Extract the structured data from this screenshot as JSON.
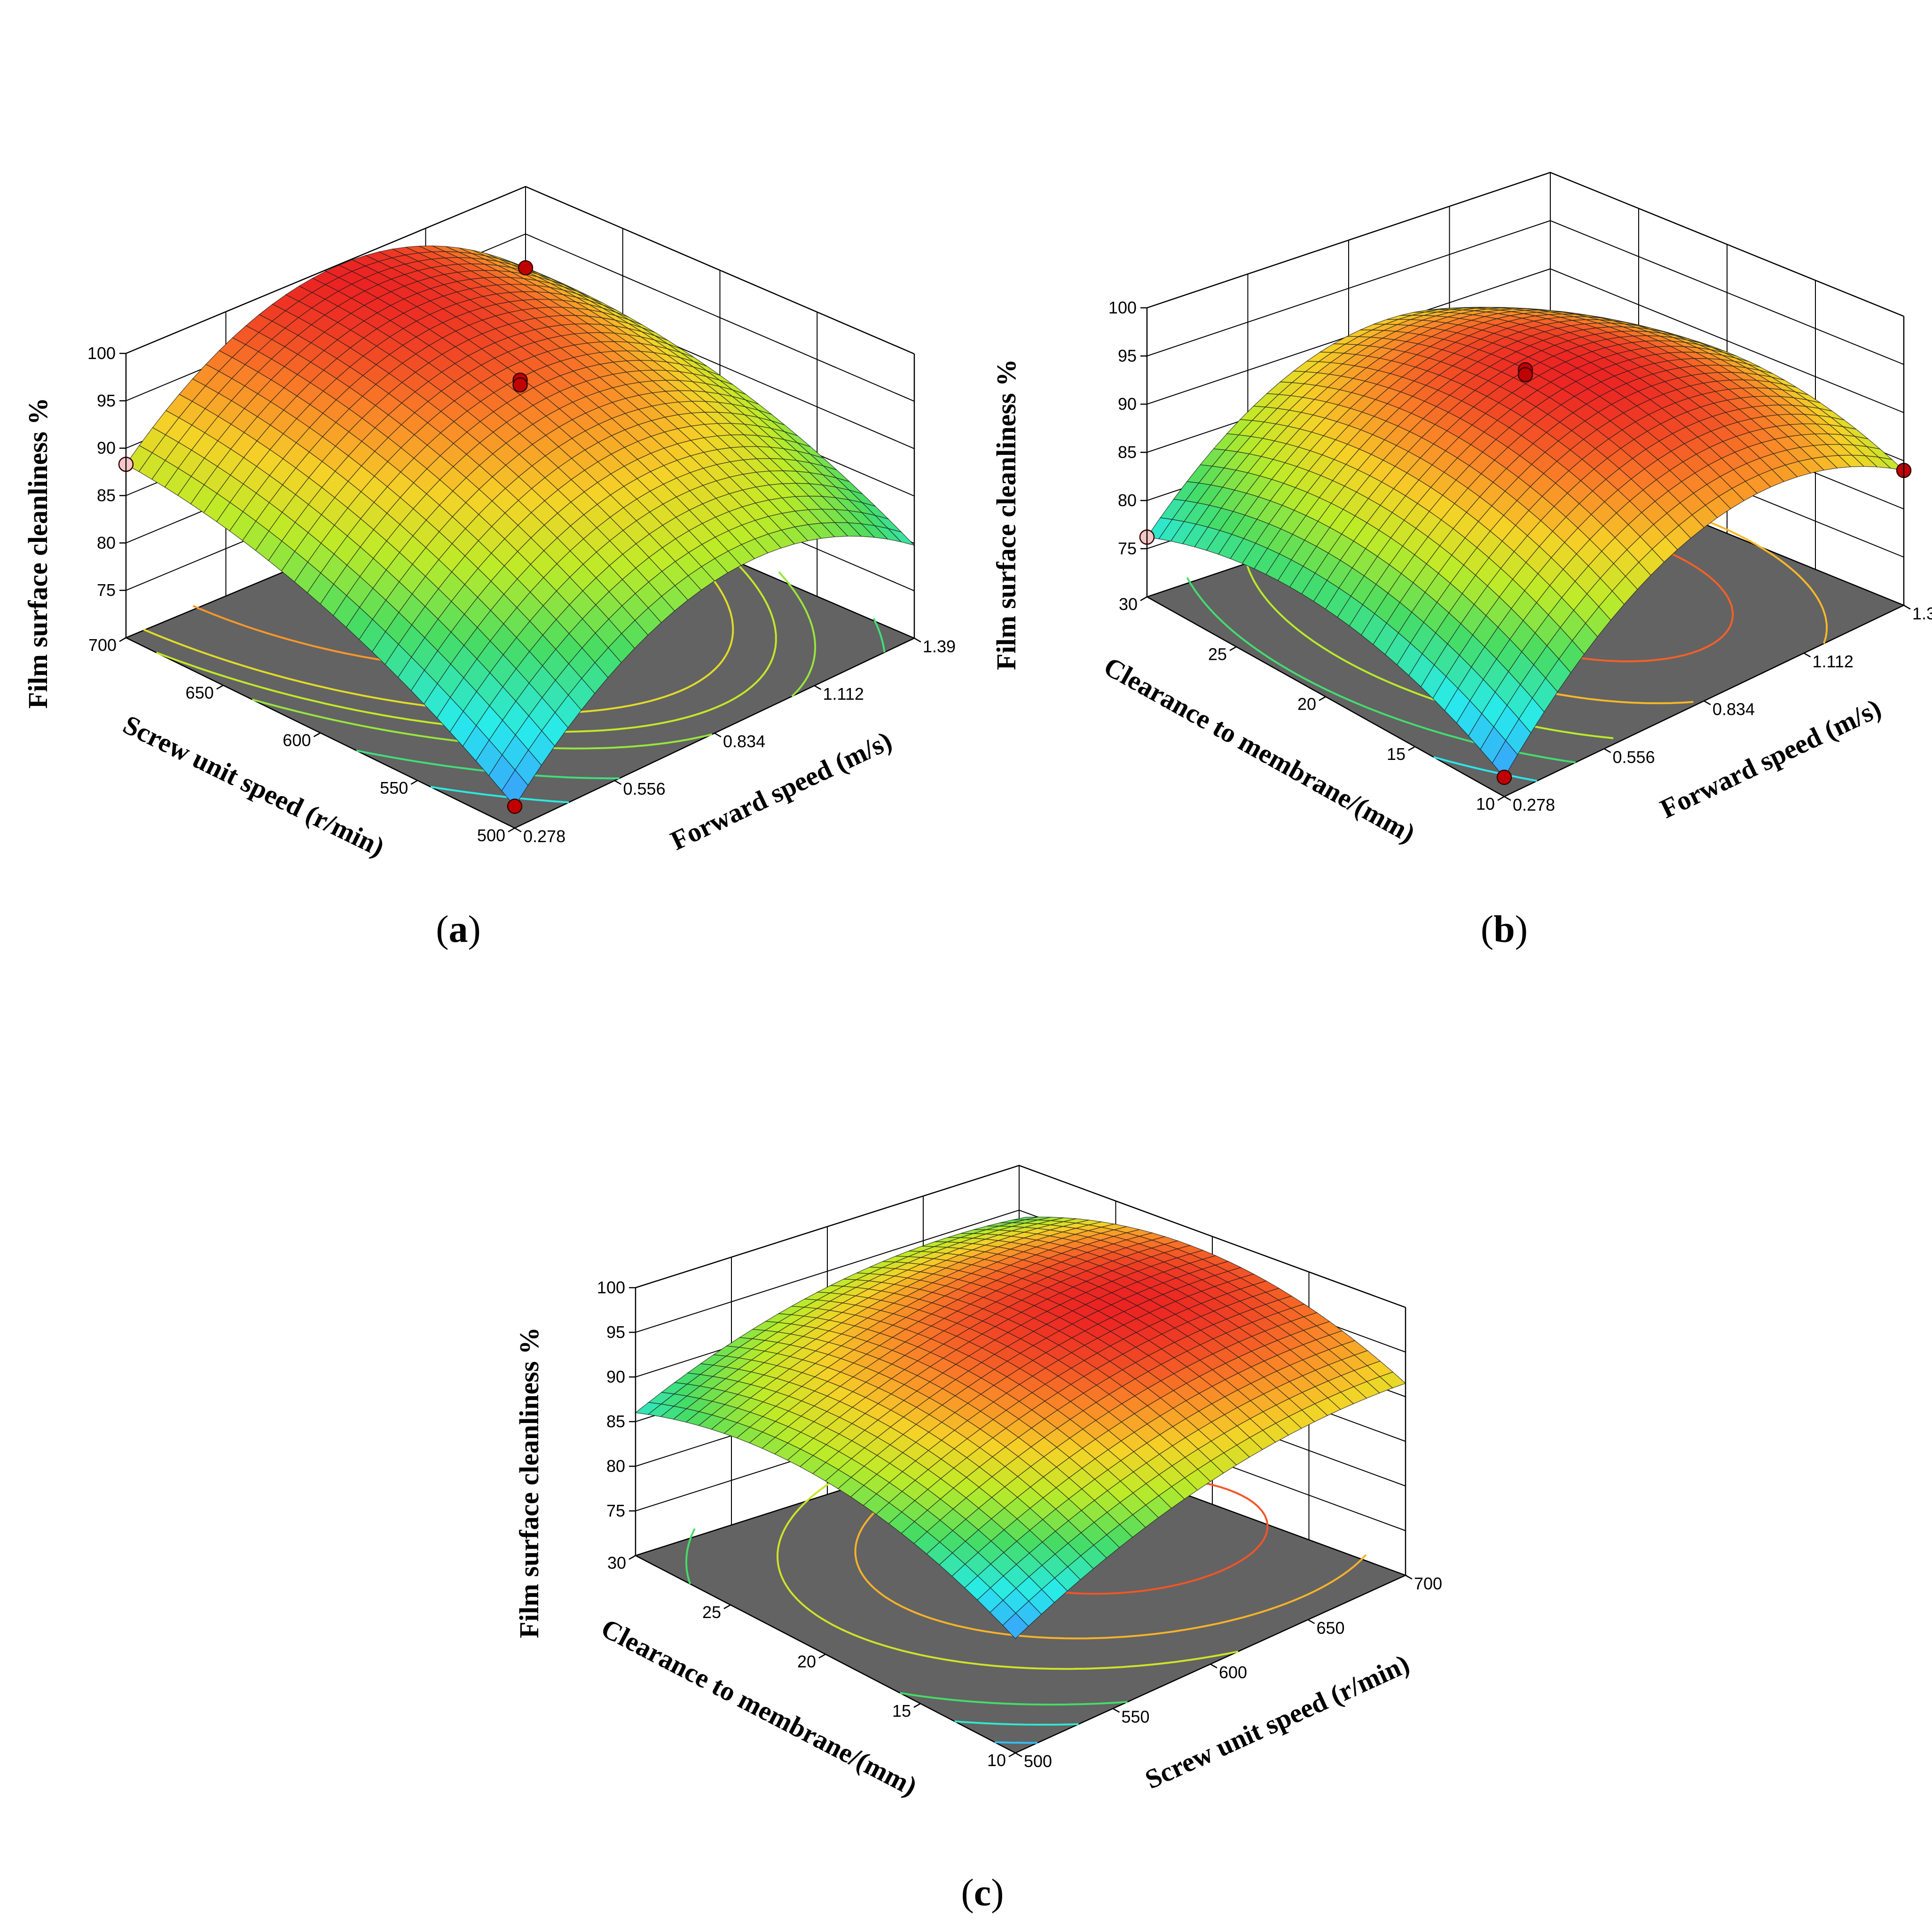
{
  "chart_data": [
    {
      "panel": "a",
      "type": "surface3d",
      "caption": "(a)",
      "zlabel": "Film surface cleanliness %",
      "xlabel": "Screw unit speed (r/min)",
      "ylabel": "Forward speed (m/s)",
      "xticks": [
        "500",
        "550",
        "600",
        "650",
        "700"
      ],
      "yticks": [
        "0.278",
        "0.556",
        "0.834",
        "1.112",
        "1.39"
      ],
      "zticks": [
        "75",
        "80",
        "85",
        "90",
        "95",
        "100"
      ],
      "xlim": [
        500,
        700
      ],
      "ylim": [
        0.278,
        1.39
      ],
      "zlim": [
        70,
        100
      ],
      "model": {
        "c": 92.5,
        "x": 4.5,
        "y": 3.5,
        "xx": -3.3,
        "yy": -10.0,
        "xy": 0.0
      },
      "corners": [
        {
          "x": 700,
          "y": 0.278,
          "z": 88.3
        },
        {
          "x": 500,
          "y": 0.278,
          "z": 72.3
        },
        {
          "x": 500,
          "y": 1.39,
          "z": 79.8
        },
        {
          "x": 700,
          "y": 1.39,
          "z": 89.0
        }
      ],
      "points": [
        {
          "x": 600,
          "y": 0.834,
          "z": 97.2,
          "color": "#c00000"
        },
        {
          "x": 600,
          "y": 0.834,
          "z": 96.7,
          "color": "#c00000"
        },
        {
          "x": 500,
          "y": 0.278,
          "z": 72.3,
          "color": "#c00000"
        },
        {
          "x": 700,
          "y": 1.39,
          "z": 89.0,
          "color": "#c00000"
        },
        {
          "x": 700,
          "y": 0.278,
          "z": 88.3,
          "color": "#f4c8c8"
        }
      ],
      "contour_levels": [
        78,
        82,
        86,
        88,
        90,
        94
      ]
    },
    {
      "panel": "b",
      "type": "surface3d",
      "caption": "(b)",
      "zlabel": "Film surface cleanliness %",
      "xlabel": "Clearance to membrane/(mm)",
      "ylabel": "Forward speed (m/s)",
      "xticks": [
        "10",
        "15",
        "20",
        "25",
        "30"
      ],
      "yticks": [
        "0.278",
        "0.556",
        "0.834",
        "1.112",
        "1.39"
      ],
      "zticks": [
        "75",
        "80",
        "85",
        "90",
        "95",
        "100"
      ],
      "xlim": [
        10,
        30
      ],
      "ylim": [
        0.278,
        1.39
      ],
      "zlim": [
        70,
        100
      ],
      "model": {
        "c": 93.8,
        "x": -3.6,
        "y": 1.0,
        "xx": -5.0,
        "yy": -10.0,
        "xy": 0.0
      },
      "corners": [
        {
          "x": 30,
          "y": 0.278,
          "z": 76.2
        },
        {
          "x": 10,
          "y": 0.278,
          "z": 72.0
        },
        {
          "x": 10,
          "y": 1.39,
          "z": 84.0
        },
        {
          "x": 30,
          "y": 1.39,
          "z": 78.0
        }
      ],
      "points": [
        {
          "x": 20,
          "y": 0.834,
          "z": 94.0,
          "color": "#c00000"
        },
        {
          "x": 20,
          "y": 0.834,
          "z": 93.5,
          "color": "#c00000"
        },
        {
          "x": 10,
          "y": 0.278,
          "z": 72.0,
          "color": "#c00000"
        },
        {
          "x": 10,
          "y": 1.39,
          "z": 84.0,
          "color": "#c00000"
        },
        {
          "x": 30,
          "y": 0.278,
          "z": 76.2,
          "color": "#f4c8c8"
        }
      ],
      "contour_levels": [
        76,
        80,
        84,
        88,
        91
      ]
    },
    {
      "panel": "c",
      "type": "surface3d",
      "caption": "(c)",
      "zlabel": "Film surface cleanliness %",
      "xlabel": "Clearance to membrane/(mm)",
      "ylabel": "Screw unit speed (r/min)",
      "xticks": [
        "10",
        "15",
        "20",
        "25",
        "30"
      ],
      "yticks": [
        "500",
        "550",
        "600",
        "650",
        "700"
      ],
      "zticks": [
        "75",
        "80",
        "85",
        "90",
        "95",
        "100"
      ],
      "xlim": [
        10,
        30
      ],
      "ylim": [
        500,
        700
      ],
      "zlim": [
        70,
        100
      ],
      "model": {
        "c": 92.5,
        "x": -3.0,
        "y": 4.5,
        "xx": -5.0,
        "yy": -3.3,
        "xy": 0.0
      },
      "corners": [
        {
          "x": 30,
          "y": 500,
          "z": 86.0
        },
        {
          "x": 10,
          "y": 500,
          "z": 82.8
        },
        {
          "x": 10,
          "y": 700,
          "z": 91.5
        },
        {
          "x": 30,
          "y": 700,
          "z": 88.0
        }
      ],
      "points": [],
      "contour_levels": [
        84,
        86,
        88,
        91,
        93,
        95
      ]
    }
  ]
}
